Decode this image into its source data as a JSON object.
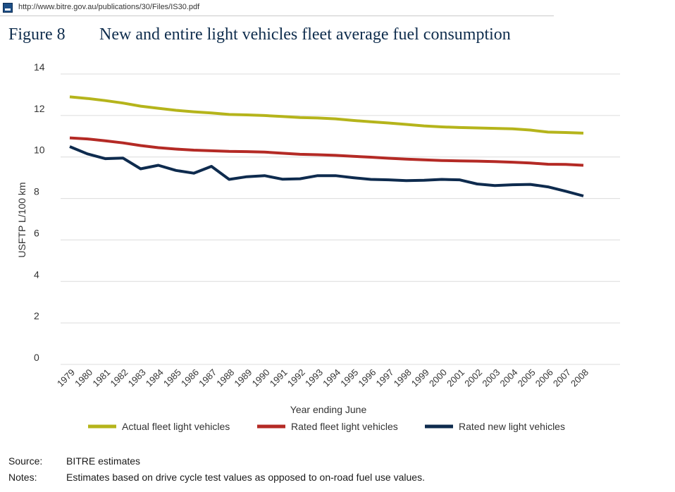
{
  "url": "http://www.bitre.gov.au/publications/30/Files/IS30.pdf",
  "figure": {
    "number": "Figure 8",
    "title": "New and entire light vehicles fleet average fuel consumption"
  },
  "chart_data": {
    "type": "line",
    "title": "",
    "xlabel": "Year ending June",
    "ylabel": "USFTP L/100 km",
    "ylim": [
      0,
      14
    ],
    "yticks": [
      "0",
      "2",
      "4",
      "6",
      "8",
      "10",
      "12",
      "14"
    ],
    "grid": true,
    "legend_position": "bottom",
    "categories": [
      "1979",
      "1980",
      "1981",
      "1982",
      "1983",
      "1984",
      "1985",
      "1986",
      "1987",
      "1988",
      "1989",
      "1990",
      "1991",
      "1992",
      "1993",
      "1994",
      "1995",
      "1996",
      "1997",
      "1998",
      "1999",
      "2000",
      "2001",
      "2002",
      "2003",
      "2004",
      "2005",
      "2006",
      "2007",
      "2008"
    ],
    "series": [
      {
        "name": "Actual fleet light vehicles",
        "color": "#b5b41b",
        "values": [
          12.9,
          12.82,
          12.72,
          12.6,
          12.45,
          12.35,
          12.25,
          12.18,
          12.12,
          12.05,
          12.03,
          12.0,
          11.95,
          11.9,
          11.88,
          11.84,
          11.76,
          11.7,
          11.64,
          11.57,
          11.5,
          11.45,
          11.42,
          11.4,
          11.38,
          11.36,
          11.3,
          11.2,
          11.18,
          11.15
        ]
      },
      {
        "name": "Rated fleet light vehicles",
        "color": "#b42a25",
        "values": [
          10.92,
          10.87,
          10.78,
          10.68,
          10.55,
          10.45,
          10.38,
          10.33,
          10.3,
          10.27,
          10.26,
          10.24,
          10.18,
          10.13,
          10.11,
          10.08,
          10.03,
          9.99,
          9.94,
          9.9,
          9.86,
          9.83,
          9.81,
          9.8,
          9.78,
          9.75,
          9.71,
          9.65,
          9.64,
          9.6
        ]
      },
      {
        "name": "Rated new light vehicles",
        "color": "#0e2b4e",
        "values": [
          10.5,
          10.15,
          9.92,
          9.95,
          9.43,
          9.6,
          9.35,
          9.22,
          9.55,
          8.92,
          9.05,
          9.1,
          8.93,
          8.95,
          9.1,
          9.1,
          9.0,
          8.92,
          8.9,
          8.86,
          8.88,
          8.92,
          8.9,
          8.7,
          8.62,
          8.66,
          8.68,
          8.56,
          8.35,
          8.12
        ]
      }
    ]
  },
  "notes": {
    "source_label": "Source:",
    "source_text": "BITRE estimates",
    "notes_label": "Notes:",
    "notes_text": "Estimates based on drive cycle test values as opposed to on-road fuel use values."
  }
}
